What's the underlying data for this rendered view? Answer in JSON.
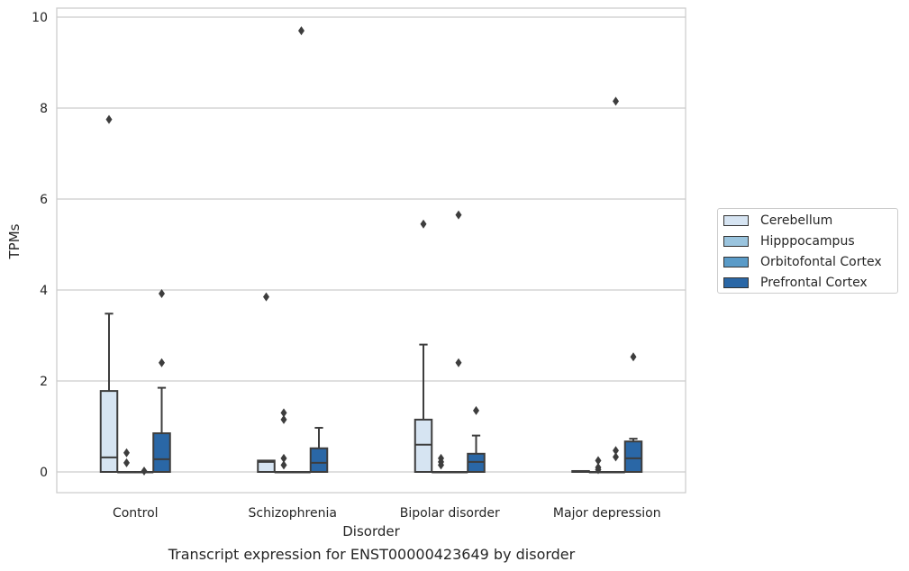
{
  "chart_data": {
    "type": "box",
    "caption": "Transcript expression for ENST00000423649 by disorder",
    "xlabel": "Disorder",
    "ylabel": "TPMs",
    "ylim": [
      -0.45,
      10.2
    ],
    "yticks": [
      "0",
      "2",
      "4",
      "6",
      "8",
      "10"
    ],
    "categories": [
      "Control",
      "Schizophrenia",
      "Bipolar disorder",
      "Major depression"
    ],
    "grid": true,
    "legend_position": "right",
    "series": [
      {
        "name": "Cerebellum",
        "color": "#d6e4f2",
        "boxes": [
          {
            "q1": 0.0,
            "median": 0.32,
            "q3": 1.78,
            "whisker_low": 0.0,
            "whisker_high": 3.48,
            "outliers": [
              7.75
            ]
          },
          {
            "q1": 0.0,
            "median": 0.22,
            "q3": 0.25,
            "whisker_low": 0.0,
            "whisker_high": 0.25,
            "outliers": [
              3.85
            ]
          },
          {
            "q1": 0.0,
            "median": 0.6,
            "q3": 1.15,
            "whisker_low": 0.0,
            "whisker_high": 2.8,
            "outliers": [
              5.45
            ]
          },
          {
            "q1": 0.0,
            "median": 0.0,
            "q3": 0.02,
            "whisker_low": 0.0,
            "whisker_high": 0.02,
            "outliers": []
          }
        ]
      },
      {
        "name": "Hipppocampus",
        "color": "#9ac4de",
        "boxes": [
          {
            "q1": 0.0,
            "median": 0.0,
            "q3": 0.0,
            "whisker_low": 0.0,
            "whisker_high": 0.0,
            "outliers": [
              0.2,
              0.42
            ]
          },
          {
            "q1": 0.0,
            "median": 0.0,
            "q3": 0.0,
            "whisker_low": 0.0,
            "whisker_high": 0.0,
            "outliers": [
              1.3,
              1.15,
              0.3,
              0.15
            ]
          },
          {
            "q1": 0.0,
            "median": 0.0,
            "q3": 0.0,
            "whisker_low": 0.0,
            "whisker_high": 0.0,
            "outliers": [
              0.3,
              0.22,
              0.15
            ]
          },
          {
            "q1": 0.0,
            "median": 0.0,
            "q3": 0.0,
            "whisker_low": 0.0,
            "whisker_high": 0.0,
            "outliers": [
              0.25,
              0.1,
              0.05
            ]
          }
        ]
      },
      {
        "name": "Orbitofontal Cortex",
        "color": "#5a9bc8",
        "boxes": [
          {
            "q1": 0.0,
            "median": 0.0,
            "q3": 0.0,
            "whisker_low": 0.0,
            "whisker_high": 0.0,
            "outliers": [
              0.02
            ]
          },
          {
            "q1": 0.0,
            "median": 0.0,
            "q3": 0.0,
            "whisker_low": 0.0,
            "whisker_high": 0.0,
            "outliers": [
              9.7
            ]
          },
          {
            "q1": 0.0,
            "median": 0.0,
            "q3": 0.0,
            "whisker_low": 0.0,
            "whisker_high": 0.0,
            "outliers": [
              5.65,
              2.4
            ]
          },
          {
            "q1": 0.0,
            "median": 0.0,
            "q3": 0.0,
            "whisker_low": 0.0,
            "whisker_high": 0.0,
            "outliers": [
              0.47,
              0.33,
              8.15
            ]
          }
        ]
      },
      {
        "name": "Prefrontal Cortex",
        "color": "#2a67a6",
        "boxes": [
          {
            "q1": 0.0,
            "median": 0.28,
            "q3": 0.85,
            "whisker_low": 0.0,
            "whisker_high": 1.85,
            "outliers": [
              3.92,
              2.4
            ]
          },
          {
            "q1": 0.0,
            "median": 0.2,
            "q3": 0.52,
            "whisker_low": 0.0,
            "whisker_high": 0.97,
            "outliers": []
          },
          {
            "q1": 0.0,
            "median": 0.22,
            "q3": 0.4,
            "whisker_low": 0.0,
            "whisker_high": 0.8,
            "outliers": [
              1.35
            ]
          },
          {
            "q1": 0.0,
            "median": 0.3,
            "q3": 0.67,
            "whisker_low": 0.0,
            "whisker_high": 0.73,
            "outliers": [
              2.53
            ]
          }
        ]
      }
    ]
  }
}
